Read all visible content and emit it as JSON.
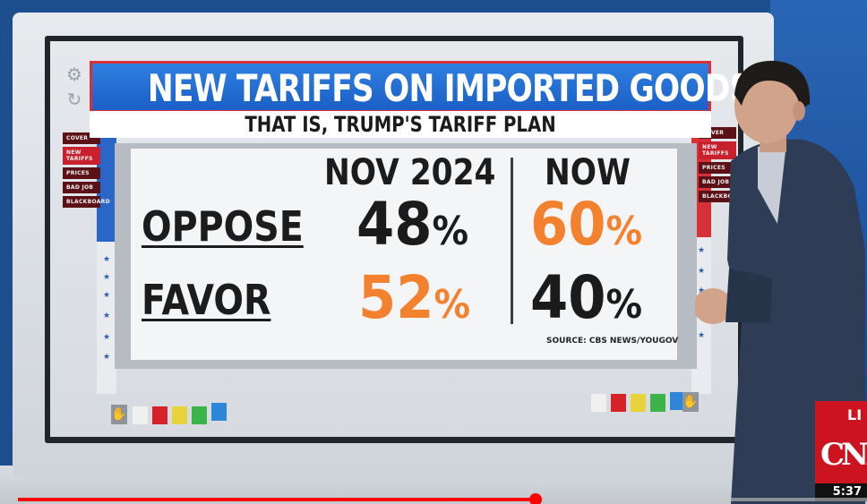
{
  "graphic": {
    "title": "NEW TARIFFS ON IMPORTED GOODS",
    "subtitle": "THAT IS, TRUMP'S TARIFF PLAN",
    "columns": [
      "NOV 2024",
      "NOW"
    ],
    "rows": [
      {
        "label": "OPPOSE",
        "values": [
          "48",
          "60"
        ],
        "colors": [
          "#1b1b1b",
          "#f4812e"
        ]
      },
      {
        "label": "FAVOR",
        "values": [
          "52",
          "40"
        ],
        "colors": [
          "#f4812e",
          "#1b1b1b"
        ]
      }
    ],
    "percent_sign": "%",
    "source": "SOURCE: CBS NEWS/YOUGOV"
  },
  "left_menu": [
    "COVER",
    "NEW TARIFFS",
    "PRICES",
    "BAD JOB",
    "BLACKBOARD"
  ],
  "right_menu": [
    "COVER",
    "NEW TARIFFS",
    "PRICES",
    "BAD JOB",
    "BLACKBOARD"
  ],
  "active_menu_item": "NEW TARIFFS",
  "palette_colors": [
    "#f0f0f0",
    "#d6232a",
    "#e8d43a",
    "#3bb54a",
    "#2f86d8"
  ],
  "network": {
    "live_label": "LI",
    "logo": "CNN",
    "time": "5:37"
  },
  "player": {
    "progress": 0.61
  },
  "colors": {
    "banner_blue": "#1a5fc7",
    "accent_red": "#d63138",
    "orange": "#f4812e"
  },
  "icons": [
    "gear-icon",
    "refresh-icon",
    "hand-icon",
    "star-icon"
  ]
}
